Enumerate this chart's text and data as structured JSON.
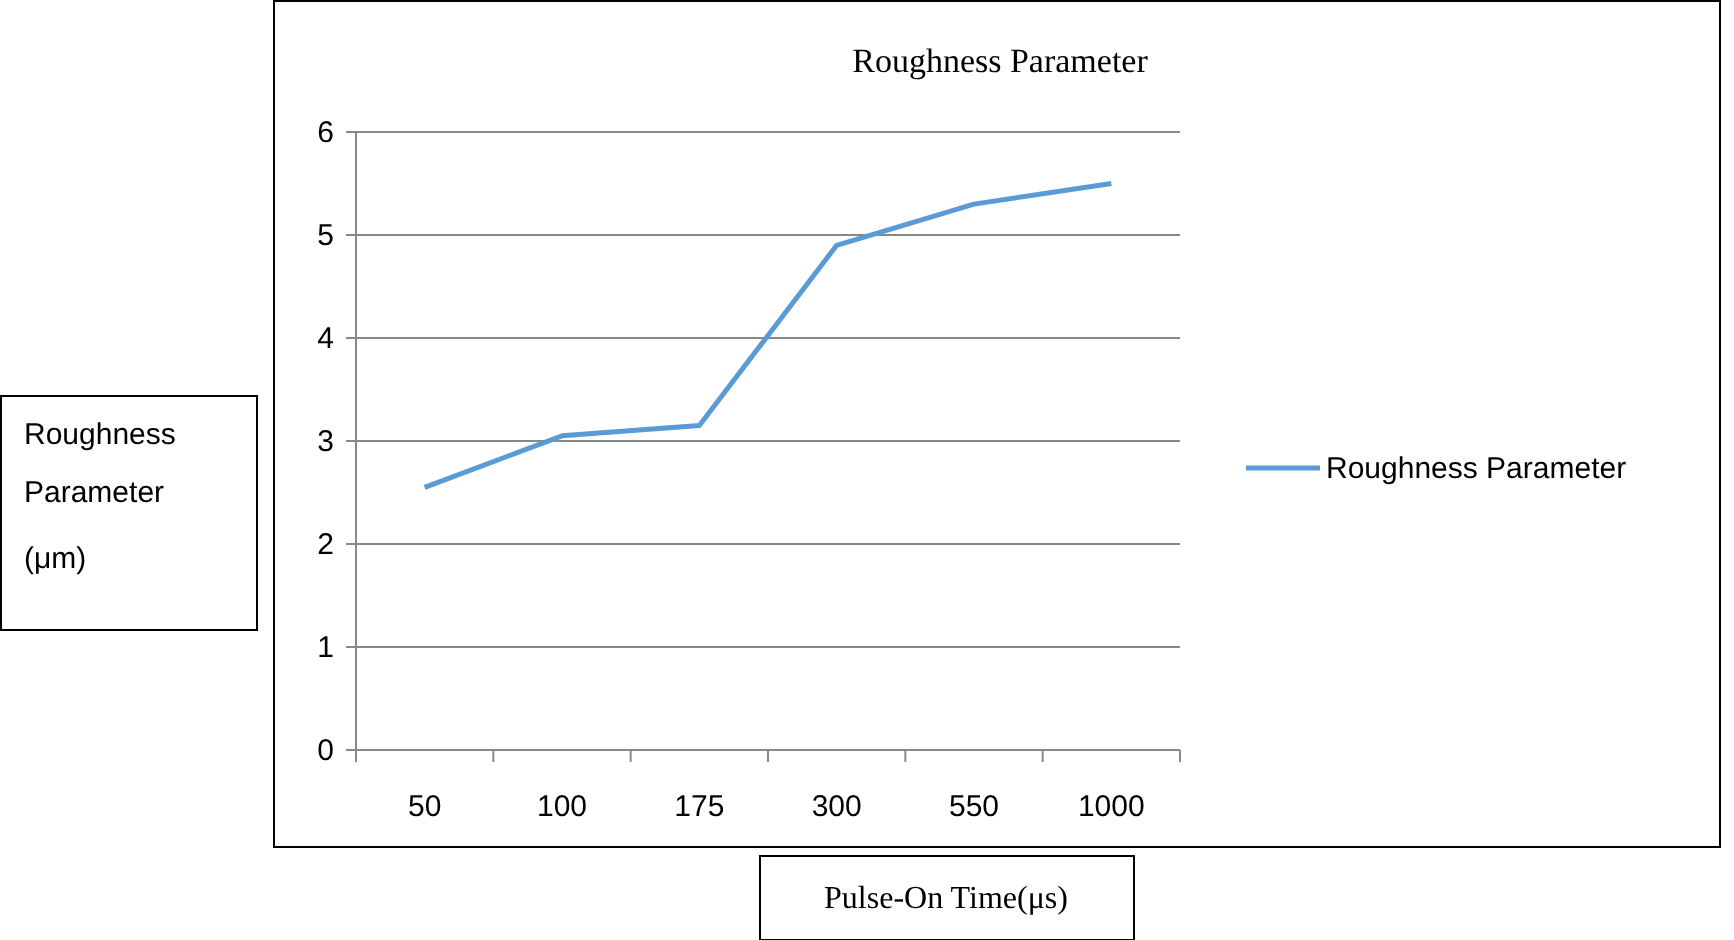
{
  "chart_data": {
    "type": "line",
    "title": "Roughness Parameter",
    "xlabel": "Pulse-On Time(μs)",
    "ylabel": "Roughness Parameter (μm)",
    "categories": [
      "50",
      "100",
      "175",
      "300",
      "550",
      "1000"
    ],
    "series": [
      {
        "name": "Roughness Parameter",
        "color": "#5b9bd5",
        "values": [
          2.55,
          3.05,
          3.15,
          4.9,
          5.3,
          5.5
        ]
      }
    ],
    "ylim": [
      0,
      6
    ],
    "yticks": [
      0,
      1,
      2,
      3,
      4,
      5,
      6
    ],
    "grid": "y",
    "legend": "right",
    "marker": "none"
  }
}
